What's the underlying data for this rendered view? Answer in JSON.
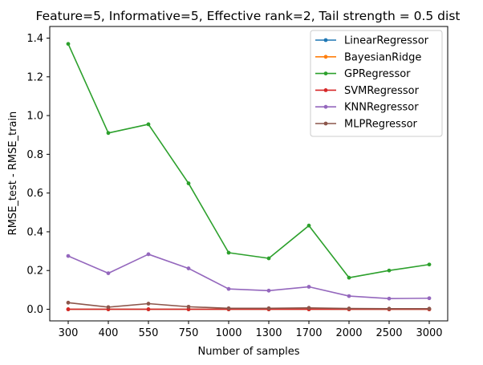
{
  "chart_data": {
    "type": "line",
    "title": "Feature=5, Informative=5, Effective rank=2, Tail strength = 0.5 dist",
    "xlabel": "Number of samples",
    "ylabel": "RMSE_test - RMSE_train",
    "categories": [
      "300",
      "400",
      "550",
      "750",
      "1000",
      "1300",
      "1700",
      "2000",
      "2500",
      "3000"
    ],
    "ylim": [
      -0.06,
      1.46
    ],
    "yticks": [
      0.0,
      0.2,
      0.4,
      0.6,
      0.8,
      1.0,
      1.2,
      1.4
    ],
    "ytick_labels": [
      "0.0",
      "0.2",
      "0.4",
      "0.6",
      "0.8",
      "1.0",
      "1.2",
      "1.4"
    ],
    "grid": false,
    "legend_position": "top-right",
    "series": [
      {
        "name": "LinearRegressor",
        "color": "#1f77b4",
        "values": [
          0.0,
          0.0,
          0.0,
          0.0,
          0.0,
          0.0,
          0.0,
          0.0,
          0.0,
          0.0
        ]
      },
      {
        "name": "BayesianRidge",
        "color": "#ff7f0e",
        "values": [
          0.0,
          0.0,
          0.0,
          0.0,
          0.0,
          0.0,
          0.0,
          0.0,
          0.0,
          0.0
        ]
      },
      {
        "name": "GPRegressor",
        "color": "#2ca02c",
        "values": [
          1.37,
          0.91,
          0.955,
          0.65,
          0.292,
          0.263,
          0.432,
          0.163,
          0.2,
          0.231
        ]
      },
      {
        "name": "SVMRegressor",
        "color": "#d62728",
        "values": [
          0.0,
          0.0,
          0.0,
          0.0,
          0.0,
          0.0,
          0.0,
          0.0,
          0.0,
          0.0
        ]
      },
      {
        "name": "KNNRegressor",
        "color": "#9467bd",
        "values": [
          0.275,
          0.186,
          0.284,
          0.211,
          0.105,
          0.096,
          0.116,
          0.068,
          0.055,
          0.057
        ]
      },
      {
        "name": "MLPRegressor",
        "color": "#8c564b",
        "values": [
          0.034,
          0.011,
          0.029,
          0.013,
          0.005,
          0.005,
          0.007,
          0.004,
          0.003,
          0.003
        ]
      }
    ]
  }
}
